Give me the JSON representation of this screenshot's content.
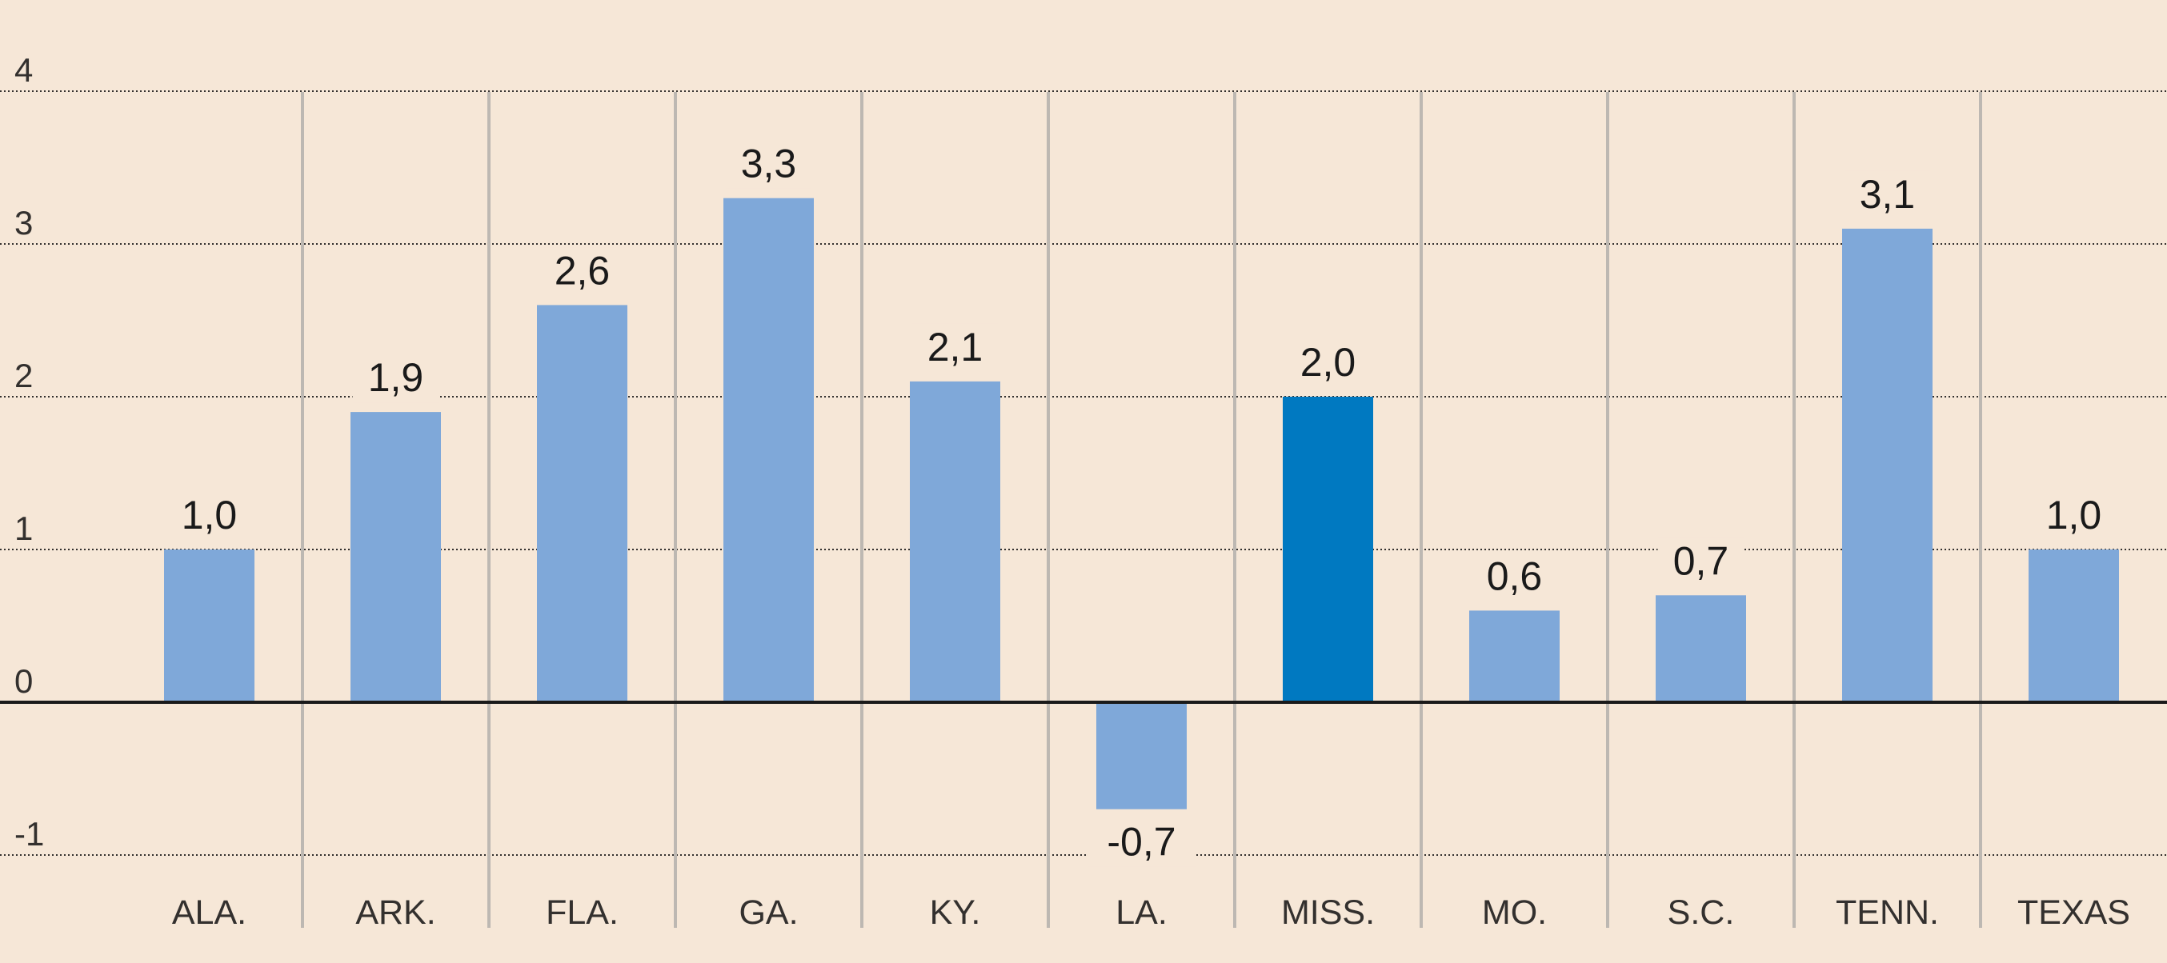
{
  "chart_data": {
    "type": "bar",
    "categories": [
      "ALA.",
      "ARK.",
      "FLA.",
      "GA.",
      "KY.",
      "LA.",
      "MISS.",
      "MO.",
      "S.C.",
      "TENN.",
      "TEXAS"
    ],
    "values": [
      1.0,
      1.9,
      2.6,
      3.3,
      2.1,
      -0.7,
      2.0,
      0.6,
      0.7,
      3.1,
      1.0
    ],
    "data_labels": [
      "1,0",
      "1,9",
      "2,6",
      "3,3",
      "2,1",
      "-0,7",
      "2,0",
      "0,6",
      "0,7",
      "3,1",
      "1,0"
    ],
    "ylim": [
      -1,
      4
    ],
    "y_ticks": [
      -1,
      0,
      1,
      2,
      3,
      4
    ],
    "y_tick_labels": [
      "-1",
      "0",
      "1",
      "2",
      "3",
      "4"
    ],
    "highlight": "MISS.",
    "grid": true,
    "colors": {
      "background": "#f6e7d7",
      "bar": "#7fa8d9",
      "highlight_bar": "#0079c1"
    }
  }
}
